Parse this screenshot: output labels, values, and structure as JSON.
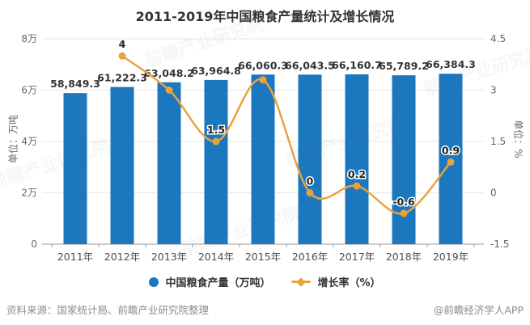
{
  "title": "2011-2019年中国粮食产量统计及增长情况",
  "chart_data": {
    "type": "bar",
    "subtype": "combo-bar-line-dual-axis",
    "categories": [
      "2011年",
      "2012年",
      "2013年",
      "2014年",
      "2015年",
      "2016年",
      "2017年",
      "2018年",
      "2019年"
    ],
    "series": [
      {
        "name": "中国粮食产量（万吨）",
        "type": "bar",
        "color": "#1b77be",
        "values": [
          58849.3,
          61222.3,
          63048.2,
          63964.8,
          66060.3,
          66043.5,
          66160.7,
          65789.2,
          66384.3
        ],
        "labels": [
          "58,849.3",
          "61,222.3",
          "63,048.2",
          "63,964.8",
          "66,060.3",
          "66,043.5",
          "66,160.7",
          "65,789.2",
          "66,384.3"
        ]
      },
      {
        "name": "增长率（%）",
        "type": "line",
        "color": "#e9a33d",
        "values": [
          null,
          4,
          3,
          1.5,
          3.3,
          0,
          0.2,
          -0.6,
          0.9
        ],
        "labels": [
          null,
          "4",
          null,
          "1.5",
          null,
          "0",
          "0.2",
          "-0.6",
          "0.9"
        ]
      }
    ],
    "left_axis": {
      "title": "单位：万吨",
      "ticks": [
        "8万",
        "6万",
        "4万",
        "2万",
        "0"
      ],
      "min": 0,
      "max": 80000
    },
    "right_axis": {
      "title": "单位：%",
      "ticks": [
        "4.5",
        "3",
        "1.5",
        "0",
        "-1.5"
      ],
      "min": -1.5,
      "max": 4.5
    },
    "grid": true,
    "legend_position": "bottom"
  },
  "legend": {
    "items": [
      {
        "label": "中国粮食产量（万吨）",
        "marker": "circle",
        "color": "#1b77be"
      },
      {
        "label": "增长率（%）",
        "marker": "diamond-line",
        "color": "#e9a33d"
      }
    ]
  },
  "footer": {
    "source": "资料来源：国家统计局、前瞻产业研究院整理",
    "brand": "@前瞻经济学人APP"
  },
  "watermark": {
    "text": "前瞻产业研究院"
  },
  "colors": {
    "bar": "#1b77be",
    "line": "#e9a33d",
    "title_text": "#333333",
    "value_label_text": "#333333",
    "tick_text": "#666666",
    "x_label_text": "#4d4d4d",
    "grid_line": "#e6e6e6",
    "axis_line": "#9b9b9b",
    "footer_text": "#8c8c8c"
  }
}
